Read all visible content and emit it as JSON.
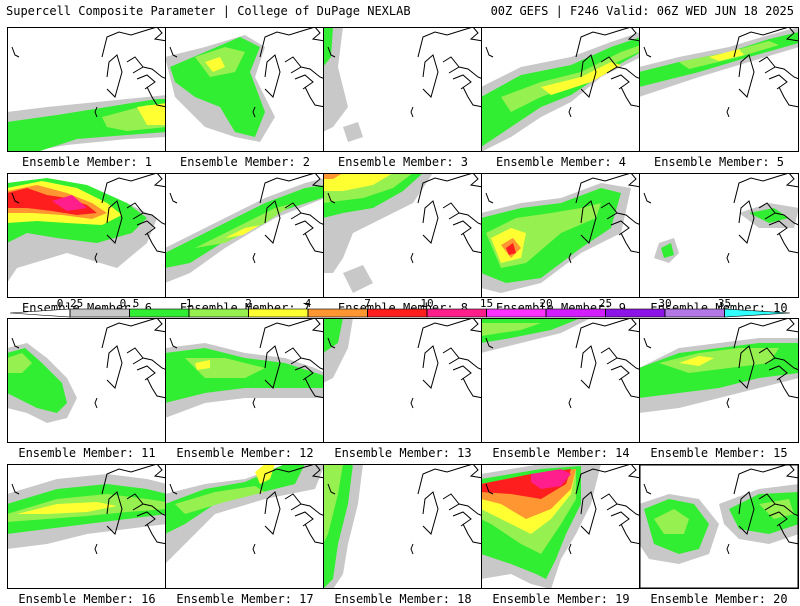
{
  "header": {
    "left": "Supercell Composite Parameter | College of DuPage NEXLAB",
    "right": "00Z GEFS | F246 Valid: 06Z WED JUN 18 2025"
  },
  "panels": [
    {
      "label": "Ensemble Member: 1"
    },
    {
      "label": "Ensemble Member: 2"
    },
    {
      "label": "Ensemble Member: 3"
    },
    {
      "label": "Ensemble Member: 4"
    },
    {
      "label": "Ensemble Member: 5"
    },
    {
      "label": "Ensemble Member: 6"
    },
    {
      "label": "Ensemble Member: 7"
    },
    {
      "label": "Ensemble Member: 8"
    },
    {
      "label": "Ensemble Member: 9"
    },
    {
      "label": "Ensemble Member: 10"
    },
    {
      "label": "Ensemble Member: 11"
    },
    {
      "label": "Ensemble Member: 12"
    },
    {
      "label": "Ensemble Member: 13"
    },
    {
      "label": "Ensemble Member: 14"
    },
    {
      "label": "Ensemble Member: 15"
    },
    {
      "label": "Ensemble Member: 16"
    },
    {
      "label": "Ensemble Member: 17"
    },
    {
      "label": "Ensemble Member: 18"
    },
    {
      "label": "Ensemble Member: 19"
    },
    {
      "label": "Ensemble Member: 20"
    }
  ],
  "colorbar": {
    "ticks": [
      "0.25",
      "0.5",
      "1",
      "2",
      "4",
      "7",
      "10",
      "15",
      "20",
      "25",
      "30",
      "35"
    ],
    "colors": [
      "#c8c8c8",
      "#32ee32",
      "#96f050",
      "#ffff32",
      "#ff9632",
      "#ff1e1e",
      "#ff1e8c",
      "#ff32ff",
      "#d21eff",
      "#8c14e6",
      "#b478e6",
      "#32ffff"
    ]
  },
  "fill_colors": {
    "gray": "#c8c8c8",
    "green": "#32ee32",
    "lightgreen": "#96f050",
    "yellow": "#ffff32",
    "orange": "#ff9632",
    "red": "#ff1e1e",
    "magenta": "#ff1e8c"
  }
}
